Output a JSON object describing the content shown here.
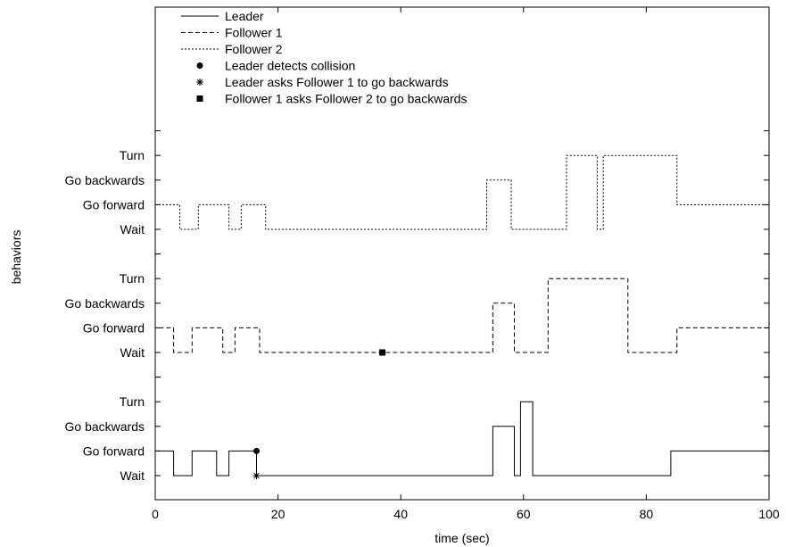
{
  "chart_data": {
    "type": "line",
    "xlabel": "time (sec)",
    "ylabel": "behaviors",
    "xlim": [
      0,
      100
    ],
    "xticks": [
      0,
      20,
      40,
      60,
      80,
      100
    ],
    "behavior_labels": [
      "Wait",
      "Go forward",
      "Go backwards",
      "Turn"
    ],
    "grid": false,
    "legend_position": "top-left",
    "series": [
      {
        "name": "Leader",
        "style": "solid",
        "steps": [
          [
            0,
            0
          ],
          [
            0,
            1
          ],
          [
            3,
            1
          ],
          [
            3,
            0
          ],
          [
            6,
            0
          ],
          [
            6,
            1
          ],
          [
            10,
            1
          ],
          [
            10,
            0
          ],
          [
            12,
            0
          ],
          [
            12,
            1
          ],
          [
            16.5,
            1
          ],
          [
            16.5,
            0
          ],
          [
            55,
            0
          ],
          [
            55,
            2
          ],
          [
            58.5,
            2
          ],
          [
            58.5,
            0
          ],
          [
            59.5,
            0
          ],
          [
            59.5,
            3
          ],
          [
            61.5,
            3
          ],
          [
            61.5,
            0
          ],
          [
            84,
            0
          ],
          [
            84,
            1
          ],
          [
            100,
            1
          ]
        ]
      },
      {
        "name": "Follower 1",
        "style": "dashed",
        "steps": [
          [
            0,
            0
          ],
          [
            0,
            1
          ],
          [
            3,
            1
          ],
          [
            3,
            0
          ],
          [
            6,
            0
          ],
          [
            6,
            1
          ],
          [
            11,
            1
          ],
          [
            11,
            0
          ],
          [
            13,
            0
          ],
          [
            13,
            1
          ],
          [
            17,
            1
          ],
          [
            17,
            0
          ],
          [
            55,
            0
          ],
          [
            55,
            2
          ],
          [
            58.5,
            2
          ],
          [
            58.5,
            0
          ],
          [
            64,
            0
          ],
          [
            64,
            3
          ],
          [
            77,
            3
          ],
          [
            77,
            0
          ],
          [
            85,
            0
          ],
          [
            85,
            1
          ],
          [
            100,
            1
          ]
        ]
      },
      {
        "name": "Follower 2",
        "style": "dotted",
        "steps": [
          [
            0,
            1
          ],
          [
            4,
            1
          ],
          [
            4,
            0
          ],
          [
            7,
            0
          ],
          [
            7,
            1
          ],
          [
            12,
            1
          ],
          [
            12,
            0
          ],
          [
            14,
            0
          ],
          [
            14,
            1
          ],
          [
            18,
            1
          ],
          [
            18,
            0
          ],
          [
            54,
            0
          ],
          [
            54,
            2
          ],
          [
            58,
            2
          ],
          [
            58,
            0
          ],
          [
            67,
            0
          ],
          [
            67,
            3
          ],
          [
            72,
            3
          ],
          [
            72,
            0
          ],
          [
            73,
            0
          ],
          [
            73,
            3
          ],
          [
            85,
            3
          ],
          [
            85,
            1
          ],
          [
            100,
            1
          ]
        ]
      }
    ],
    "events": [
      {
        "name": "Leader detects collision",
        "marker": "circle",
        "x": 16.5,
        "panel": "Leader",
        "y": 1
      },
      {
        "name": "Leader asks Follower 1 to go backwards",
        "marker": "asterisk",
        "x": 16.5,
        "panel": "Leader",
        "y": 0
      },
      {
        "name": "Follower 1 asks Follower 2 to go backwards",
        "marker": "square",
        "x": 37,
        "panel": "Follower 1",
        "y": 0
      }
    ],
    "colors": {
      "line": "#000000",
      "background": "#ffffff"
    }
  }
}
